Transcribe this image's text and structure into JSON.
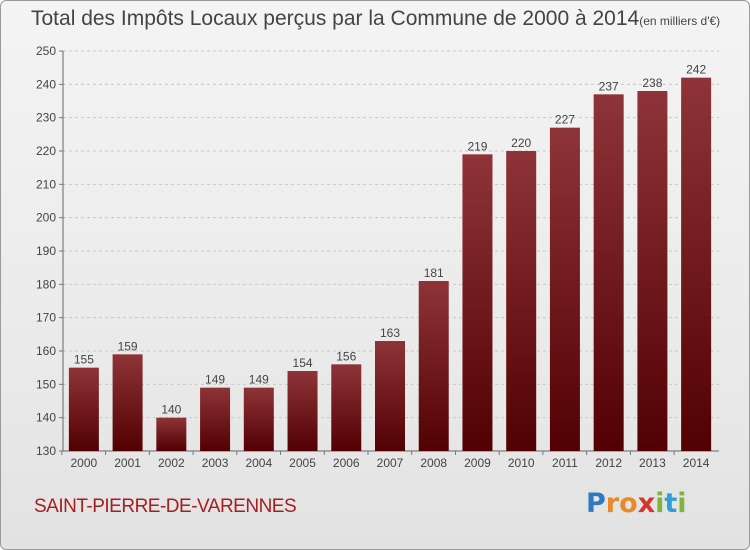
{
  "header": {
    "title": "Total des Impôts Locaux perçus par la Commune de 2000 à 2014",
    "unit": "(en milliers d'€)"
  },
  "footer": {
    "commune": "SAINT-PIERRE-DE-VARENNES",
    "logo": {
      "letters": [
        "P",
        "r",
        "o",
        "x",
        "i",
        "t",
        "i"
      ],
      "colors": [
        "#2f79c0",
        "#e8892a",
        "#e8892a",
        "#d8352a",
        "#7bb83a",
        "#2f9fd6",
        "#7bb83a"
      ]
    }
  },
  "colors": {
    "bar_top": "#8e3438",
    "bar_bottom": "#520003",
    "grid": "#c8c8c8"
  },
  "chart_data": {
    "type": "bar",
    "title": "Total des Impôts Locaux perçus par la Commune de 2000 à 2014",
    "xlabel": "",
    "ylabel": "",
    "categories": [
      "2000",
      "2001",
      "2002",
      "2003",
      "2004",
      "2005",
      "2006",
      "2007",
      "2008",
      "2009",
      "2010",
      "2011",
      "2012",
      "2013",
      "2014"
    ],
    "values": [
      155,
      159,
      140,
      149,
      149,
      154,
      156,
      163,
      181,
      219,
      220,
      227,
      237,
      238,
      242
    ],
    "ylim": [
      130,
      250
    ],
    "yticks": [
      130,
      140,
      150,
      160,
      170,
      180,
      190,
      200,
      210,
      220,
      230,
      240,
      250
    ],
    "grid": true,
    "legend": "none"
  }
}
